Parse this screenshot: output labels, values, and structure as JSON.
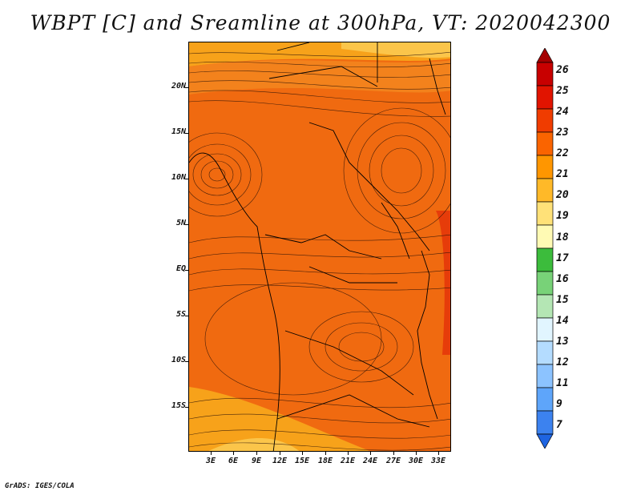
{
  "title": "WBPT [C] and Sreamline at 300hPa, VT: 2020042300",
  "credit": "GrADS: IGES/COLA",
  "lat_labels": [
    "20N",
    "15N",
    "10N",
    "5N",
    "EQ",
    "5S",
    "10S",
    "15S"
  ],
  "lon_labels": [
    "3E",
    "6E",
    "9E",
    "12E",
    "15E",
    "18E",
    "21E",
    "24E",
    "27E",
    "30E",
    "33E"
  ],
  "colorbar": {
    "levels": [
      "26",
      "25",
      "24",
      "23",
      "22",
      "21",
      "20",
      "19",
      "18",
      "17",
      "16",
      "15",
      "14",
      "13",
      "12",
      "11",
      "9",
      "7"
    ],
    "colors": [
      "#a50000",
      "#c80000",
      "#e11400",
      "#f03c00",
      "#fa6400",
      "#ff9600",
      "#ffb928",
      "#ffe178",
      "#fffab4",
      "#3cbc3c",
      "#78d278",
      "#b4e6b4",
      "#e1f5ff",
      "#b4dcff",
      "#8cc3ff",
      "#5ea5fa",
      "#3c82ef",
      "#1e64e1"
    ]
  }
}
